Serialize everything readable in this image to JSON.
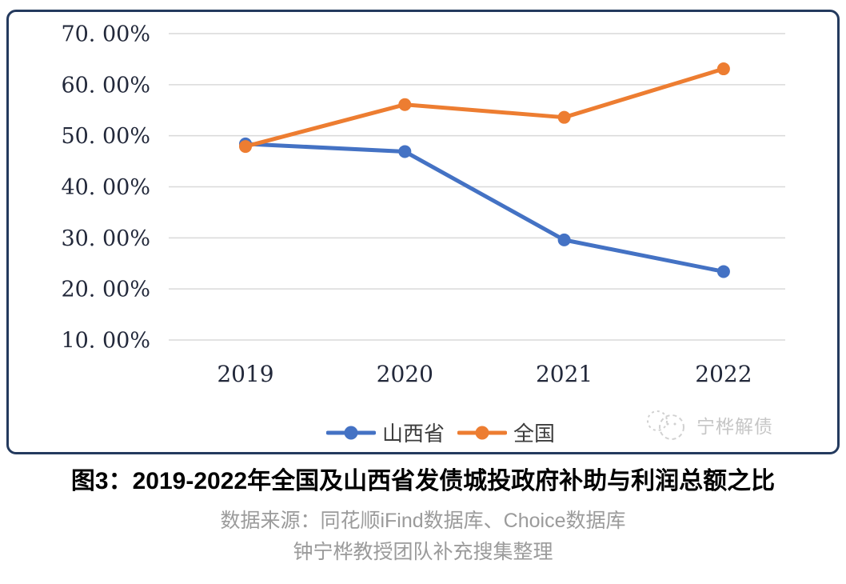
{
  "chart_data": {
    "type": "line",
    "categories": [
      "2019",
      "2020",
      "2021",
      "2022"
    ],
    "series": [
      {
        "name": "山西省",
        "color": "#4472C4",
        "values": [
          48.4,
          46.9,
          29.6,
          23.4
        ]
      },
      {
        "name": "全国",
        "color": "#ED7D31",
        "values": [
          47.9,
          56.1,
          53.6,
          63.1
        ]
      }
    ],
    "y_ticks": [
      "70. 00%",
      "60. 00%",
      "50. 00%",
      "40. 00%",
      "30. 00%",
      "20. 00%",
      "10. 00%"
    ],
    "y_tick_values": [
      70,
      60,
      50,
      40,
      30,
      20,
      10
    ],
    "ylim": [
      10,
      70
    ],
    "xlabel": "",
    "ylabel": "",
    "grid": true,
    "gridline_color": "#d9d9d9",
    "tick_label_color": "#22283a",
    "legend_position": "bottom",
    "title": ""
  },
  "frame": {
    "border_color": "#243a5e"
  },
  "watermark": {
    "text": "宁桦解债",
    "color": "#c4c4c4"
  },
  "caption": {
    "title": "图3：2019-2022年全国及山西省发债城投政府补助与利润总额之比",
    "source_line1": "数据来源：同花顺iFind数据库、Choice数据库",
    "source_line2": "钟宁桦教授团队补充搜集整理"
  }
}
